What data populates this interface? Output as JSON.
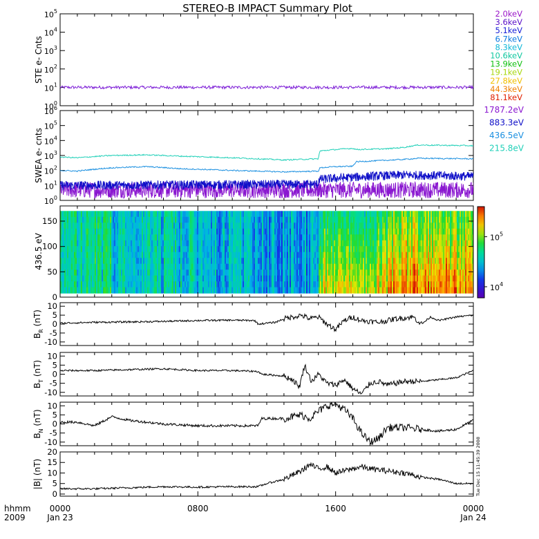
{
  "title": "STEREO-B IMPACT Summary Plot",
  "timestamp": "Tue Dec 15 11:45:39 2008",
  "time_axis": {
    "corner_top": "hhmm",
    "corner_bottom": "2009",
    "ticks": [
      {
        "hour": 0,
        "label": "0000",
        "date": "Jan 23"
      },
      {
        "hour": 8,
        "label": "0800",
        "date": ""
      },
      {
        "hour": 16,
        "label": "1600",
        "date": ""
      },
      {
        "hour": 24,
        "label": "0000",
        "date": "Jan 24"
      }
    ]
  },
  "colors": {
    "line_black": "#000000",
    "ste_purple": "#7b1ad6",
    "swea_1787": "#8a17d0",
    "swea_883": "#1010c8",
    "swea_436": "#1a8fe0",
    "swea_215": "#20d0b8"
  },
  "ste_legend": [
    {
      "label": "2.0keV",
      "color": "#9a17c8"
    },
    {
      "label": "3.6keV",
      "color": "#5a10c8"
    },
    {
      "label": "5.1keV",
      "color": "#1a20d8"
    },
    {
      "label": "6.7keV",
      "color": "#0a78e0"
    },
    {
      "label": "8.3keV",
      "color": "#10b8d8"
    },
    {
      "label": "10.6keV",
      "color": "#10c8a0"
    },
    {
      "label": "13.9keV",
      "color": "#10c010"
    },
    {
      "label": "19.1keV",
      "color": "#a8d810"
    },
    {
      "label": "27.8keV",
      "color": "#f0c000"
    },
    {
      "label": "44.3keV",
      "color": "#f08000"
    },
    {
      "label": "81.1keV",
      "color": "#e02000"
    }
  ],
  "swea_legend": [
    {
      "label": "1787.2eV",
      "color": "#8a17d0"
    },
    {
      "label": "883.3eV",
      "color": "#1010c8"
    },
    {
      "label": "436.5eV",
      "color": "#1a8fe0"
    },
    {
      "label": "215.8eV",
      "color": "#20d0b8"
    }
  ],
  "chart_data": [
    {
      "type": "line",
      "panel": "ste",
      "ylabel": "STE e- Cnts",
      "yscale": "log",
      "ylim": [
        1,
        100000
      ],
      "yticks": [
        {
          "base": "10",
          "exp": "0"
        },
        {
          "base": "10",
          "exp": "1"
        },
        {
          "base": "10",
          "exp": "2"
        },
        {
          "base": "10",
          "exp": "3"
        },
        {
          "base": "10",
          "exp": "4"
        },
        {
          "base": "10",
          "exp": "5"
        }
      ],
      "x_hours": [
        0,
        24
      ],
      "series": [
        {
          "name": "2.0keV",
          "color": "#7b1ad6",
          "level": 10,
          "noise_decades": 0.08
        }
      ]
    },
    {
      "type": "line",
      "panel": "swea",
      "ylabel": "SWEA e- cnts",
      "yscale": "log",
      "ylim": [
        1,
        1000000
      ],
      "yticks": [
        {
          "base": "10",
          "exp": "0"
        },
        {
          "base": "10",
          "exp": "1"
        },
        {
          "base": "10",
          "exp": "2"
        },
        {
          "base": "10",
          "exp": "3"
        },
        {
          "base": "10",
          "exp": "4"
        },
        {
          "base": "10",
          "exp": "5"
        },
        {
          "base": "10",
          "exp": "6"
        }
      ],
      "x_hours": [
        0,
        24
      ],
      "series": [
        {
          "name": "1787.2eV",
          "color": "#8a17d0",
          "noise_decades": 0.55,
          "levels": [
            [
              0,
              5
            ],
            [
              15,
              5
            ],
            [
              15,
              5
            ],
            [
              24,
              5
            ]
          ]
        },
        {
          "name": "883.3eV",
          "color": "#1010c8",
          "noise_decades": 0.3,
          "levels": [
            [
              0,
              10
            ],
            [
              15,
              12
            ],
            [
              15,
              25
            ],
            [
              20,
              50
            ],
            [
              24,
              40
            ]
          ]
        },
        {
          "name": "436.5eV",
          "color": "#1a8fe0",
          "noise_decades": 0.04,
          "levels": [
            [
              0,
              100
            ],
            [
              1,
              90
            ],
            [
              3,
              150
            ],
            [
              5,
              180
            ],
            [
              7,
              130
            ],
            [
              10,
              100
            ],
            [
              13,
              80
            ],
            [
              15,
              90
            ],
            [
              15.1,
              150
            ],
            [
              16,
              180
            ],
            [
              17,
              190
            ],
            [
              17.2,
              380
            ],
            [
              19,
              480
            ],
            [
              20,
              550
            ],
            [
              20.8,
              650
            ],
            [
              24,
              600
            ]
          ]
        },
        {
          "name": "215.8eV",
          "color": "#20d0b8",
          "noise_decades": 0.04,
          "levels": [
            [
              0,
              800
            ],
            [
              1,
              700
            ],
            [
              3,
              1000
            ],
            [
              5,
              1100
            ],
            [
              7,
              900
            ],
            [
              10,
              700
            ],
            [
              13,
              500
            ],
            [
              15,
              600
            ],
            [
              15.1,
              2000
            ],
            [
              16,
              2500
            ],
            [
              17,
              3000
            ],
            [
              17.2,
              2500
            ],
            [
              19,
              2800
            ],
            [
              20,
              3500
            ],
            [
              20.8,
              5000
            ],
            [
              24,
              4500
            ]
          ]
        }
      ]
    },
    {
      "type": "heatmap",
      "panel": "pad",
      "ylabel": "436.5 eV",
      "ylim": [
        0,
        180
      ],
      "yticks": [
        "0",
        "50",
        "100",
        "150"
      ],
      "x_hours": [
        0,
        24
      ],
      "colorbar": {
        "scale": "log",
        "range": [
          6000,
          400000
        ],
        "ticks": [
          {
            "base": "10",
            "exp": "4",
            "value": 10000
          },
          {
            "base": "10",
            "exp": "5",
            "value": 100000
          }
        ]
      },
      "segments": [
        {
          "from": 0,
          "to": 3,
          "level": 0.48
        },
        {
          "from": 3,
          "to": 8,
          "level": 0.42
        },
        {
          "from": 8,
          "to": 11.5,
          "level": 0.36
        },
        {
          "from": 11.5,
          "to": 15,
          "level": 0.34
        },
        {
          "from": 15,
          "to": 19,
          "level": 0.62
        },
        {
          "from": 19,
          "to": 24,
          "level": 0.76
        }
      ]
    },
    {
      "type": "line",
      "panel": "br",
      "ylabel": "BR (nT)",
      "ylim": [
        -12,
        12
      ],
      "yticks": [
        "-10",
        "-5",
        "0",
        "5",
        "10"
      ],
      "x_hours": [
        0,
        24
      ],
      "series": [
        {
          "name": "BR",
          "color": "#000000",
          "noise": 0.5,
          "points": [
            [
              0,
              0.5
            ],
            [
              2,
              1
            ],
            [
              4,
              1.2
            ],
            [
              6,
              1.5
            ],
            [
              8,
              2
            ],
            [
              10,
              2.2
            ],
            [
              11.3,
              2
            ],
            [
              11.5,
              0
            ],
            [
              12.5,
              1
            ],
            [
              13,
              3
            ],
            [
              14,
              5
            ],
            [
              14.5,
              3
            ],
            [
              15,
              4
            ],
            [
              15.5,
              0
            ],
            [
              16,
              -3
            ],
            [
              16.5,
              2
            ],
            [
              17,
              4
            ],
            [
              17.5,
              2
            ],
            [
              18.5,
              1
            ],
            [
              19.5,
              3
            ],
            [
              20.5,
              4
            ],
            [
              21,
              0
            ],
            [
              21.5,
              4
            ],
            [
              22,
              2
            ],
            [
              23,
              4
            ],
            [
              24,
              5
            ]
          ]
        }
      ]
    },
    {
      "type": "line",
      "panel": "bt",
      "ylabel": "BT (nT)",
      "ylim": [
        -12,
        12
      ],
      "yticks": [
        "-10",
        "-5",
        "0",
        "5",
        "10"
      ],
      "x_hours": [
        0,
        24
      ],
      "series": [
        {
          "name": "BT",
          "color": "#000000",
          "noise": 0.5,
          "points": [
            [
              0,
              2
            ],
            [
              2,
              2
            ],
            [
              4,
              2.5
            ],
            [
              6,
              3
            ],
            [
              8,
              2
            ],
            [
              10,
              2
            ],
            [
              11.5,
              1.5
            ],
            [
              11.7,
              0
            ],
            [
              13,
              -1
            ],
            [
              13.5,
              -3
            ],
            [
              13.9,
              -7
            ],
            [
              14.2,
              5
            ],
            [
              14.6,
              -4
            ],
            [
              15,
              0
            ],
            [
              15.5,
              -5
            ],
            [
              16,
              -6
            ],
            [
              16.5,
              -3
            ],
            [
              17,
              -8
            ],
            [
              17.5,
              -11
            ],
            [
              18,
              -5
            ],
            [
              18.5,
              -4
            ],
            [
              19,
              -6
            ],
            [
              19.5,
              -5
            ],
            [
              20,
              -4
            ],
            [
              21,
              -4
            ],
            [
              22,
              -3
            ],
            [
              23,
              -2
            ],
            [
              24,
              2
            ]
          ]
        }
      ]
    },
    {
      "type": "line",
      "panel": "bn",
      "ylabel": "BN (nT)",
      "ylim": [
        -12,
        12
      ],
      "yticks": [
        "-10",
        "-5",
        "0",
        "5",
        "10"
      ],
      "x_hours": [
        0,
        24
      ],
      "series": [
        {
          "name": "BN",
          "color": "#000000",
          "noise": 0.7,
          "points": [
            [
              0,
              1
            ],
            [
              1,
              1
            ],
            [
              2,
              -1
            ],
            [
              3,
              4
            ],
            [
              4,
              2
            ],
            [
              6,
              0
            ],
            [
              8,
              -1
            ],
            [
              10,
              -1
            ],
            [
              11.5,
              -1
            ],
            [
              11.7,
              3
            ],
            [
              13,
              3
            ],
            [
              14,
              5
            ],
            [
              14.5,
              3
            ],
            [
              15,
              7
            ],
            [
              15.5,
              10
            ],
            [
              16,
              11
            ],
            [
              16.5,
              8
            ],
            [
              17,
              3
            ],
            [
              17.5,
              -5
            ],
            [
              18,
              -10
            ],
            [
              18.5,
              -8
            ],
            [
              19,
              -2
            ],
            [
              20,
              -2
            ],
            [
              21,
              -3
            ],
            [
              22,
              -4
            ],
            [
              23,
              -3
            ],
            [
              24,
              2
            ]
          ]
        }
      ]
    },
    {
      "type": "line",
      "panel": "bmag",
      "ylabel": "|B| (nT)",
      "ylim": [
        -1,
        20
      ],
      "yticks": [
        "0",
        "5",
        "10",
        "15",
        "20"
      ],
      "x_hours": [
        0,
        24
      ],
      "series": [
        {
          "name": "|B|",
          "color": "#000000",
          "noise": 0.45,
          "points": [
            [
              0,
              2.5
            ],
            [
              2,
              2.5
            ],
            [
              4,
              3
            ],
            [
              6,
              3.5
            ],
            [
              8,
              3.3
            ],
            [
              10,
              3.5
            ],
            [
              11.5,
              3.5
            ],
            [
              12,
              5
            ],
            [
              13,
              7
            ],
            [
              14,
              11
            ],
            [
              14.5,
              14
            ],
            [
              15,
              12
            ],
            [
              15.5,
              13
            ],
            [
              16,
              10
            ],
            [
              17,
              12
            ],
            [
              17.5,
              13
            ],
            [
              18,
              12
            ],
            [
              19,
              11
            ],
            [
              20,
              10
            ],
            [
              21,
              8
            ],
            [
              22,
              7
            ],
            [
              23,
              5
            ],
            [
              24,
              5
            ]
          ]
        }
      ]
    }
  ]
}
